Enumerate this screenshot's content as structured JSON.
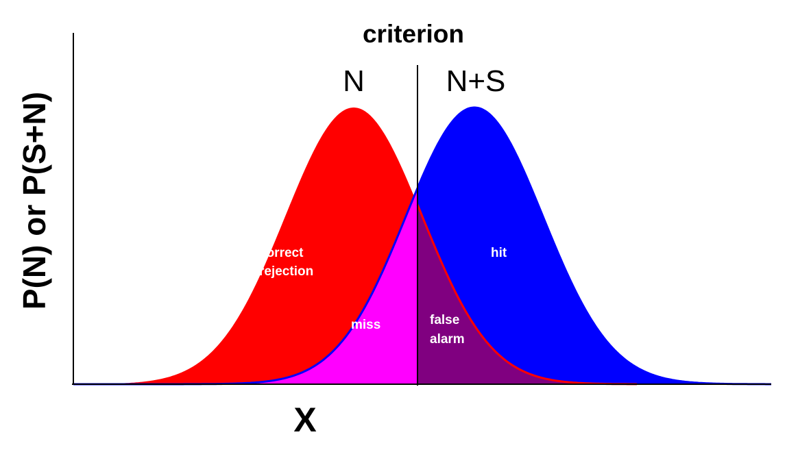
{
  "title": "criterion",
  "ylabel": "P(N) or P(S+N)",
  "xlabel": "X",
  "distributions": {
    "noise": {
      "label": "N",
      "color": "#ff0000"
    },
    "signal": {
      "label": "N+S",
      "color": "#0000ff"
    }
  },
  "regions": {
    "correct_rejection": {
      "lines": [
        "correct",
        "rejection"
      ],
      "color": "#ff0000"
    },
    "miss": {
      "lines": [
        "miss"
      ],
      "color": "#ff00ff"
    },
    "false_alarm": {
      "lines": [
        "false",
        "alarm"
      ],
      "color": "#800080"
    },
    "hit": {
      "lines": [
        "hit"
      ],
      "color": "#0000ff"
    }
  },
  "colors": {
    "axis": "#000000",
    "criterion_line": "#000000"
  }
}
